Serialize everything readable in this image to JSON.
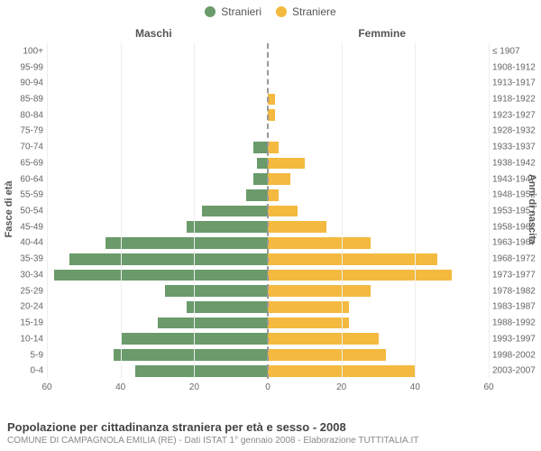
{
  "legend": {
    "male": "Stranieri",
    "female": "Straniere"
  },
  "titles": {
    "male_side": "Maschi",
    "female_side": "Femmine",
    "y_left": "Fasce di età",
    "y_right": "Anni di nascita"
  },
  "colors": {
    "male": "#6b9a6b",
    "female": "#f4b93f",
    "grid": "#eeeeee",
    "center": "#999999",
    "background": "#ffffff"
  },
  "chart": {
    "type": "pyramid",
    "max_value": 60,
    "x_ticks": [
      60,
      40,
      20,
      0,
      20,
      40,
      60
    ],
    "age_groups": [
      {
        "label": "100+",
        "birth": "≤ 1907",
        "m": 0,
        "f": 0
      },
      {
        "label": "95-99",
        "birth": "1908-1912",
        "m": 0,
        "f": 0
      },
      {
        "label": "90-94",
        "birth": "1913-1917",
        "m": 0,
        "f": 0
      },
      {
        "label": "85-89",
        "birth": "1918-1922",
        "m": 0,
        "f": 2
      },
      {
        "label": "80-84",
        "birth": "1923-1927",
        "m": 0,
        "f": 2
      },
      {
        "label": "75-79",
        "birth": "1928-1932",
        "m": 0,
        "f": 0
      },
      {
        "label": "70-74",
        "birth": "1933-1937",
        "m": 4,
        "f": 3
      },
      {
        "label": "65-69",
        "birth": "1938-1942",
        "m": 3,
        "f": 10
      },
      {
        "label": "60-64",
        "birth": "1943-1947",
        "m": 4,
        "f": 6
      },
      {
        "label": "55-59",
        "birth": "1948-1952",
        "m": 6,
        "f": 3
      },
      {
        "label": "50-54",
        "birth": "1953-1957",
        "m": 18,
        "f": 8
      },
      {
        "label": "45-49",
        "birth": "1958-1962",
        "m": 22,
        "f": 16
      },
      {
        "label": "40-44",
        "birth": "1963-1967",
        "m": 44,
        "f": 28
      },
      {
        "label": "35-39",
        "birth": "1968-1972",
        "m": 54,
        "f": 46
      },
      {
        "label": "30-34",
        "birth": "1973-1977",
        "m": 58,
        "f": 50
      },
      {
        "label": "25-29",
        "birth": "1978-1982",
        "m": 28,
        "f": 28
      },
      {
        "label": "20-24",
        "birth": "1983-1987",
        "m": 22,
        "f": 22
      },
      {
        "label": "15-19",
        "birth": "1988-1992",
        "m": 30,
        "f": 22
      },
      {
        "label": "10-14",
        "birth": "1993-1997",
        "m": 40,
        "f": 30
      },
      {
        "label": "5-9",
        "birth": "1998-2002",
        "m": 42,
        "f": 32
      },
      {
        "label": "0-4",
        "birth": "2003-2007",
        "m": 36,
        "f": 40
      }
    ]
  },
  "footer": {
    "title": "Popolazione per cittadinanza straniera per età e sesso - 2008",
    "subtitle": "COMUNE DI CAMPAGNOLA EMILIA (RE) - Dati ISTAT 1° gennaio 2008 - Elaborazione TUTTITALIA.IT"
  }
}
